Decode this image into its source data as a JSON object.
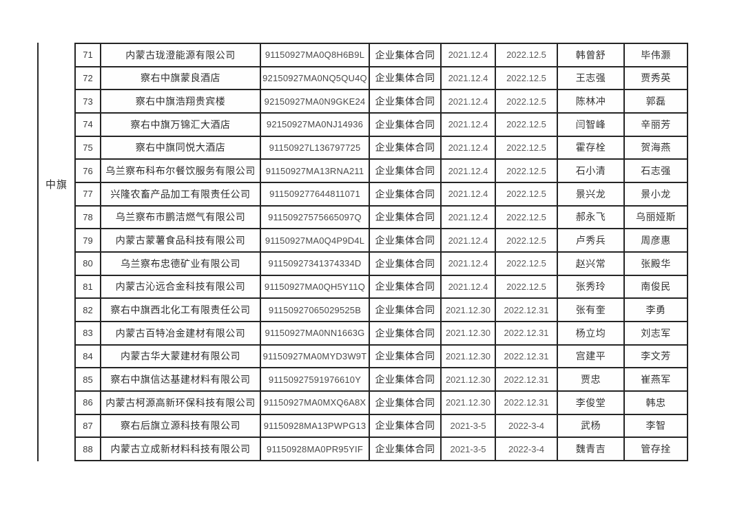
{
  "page": {
    "region_label": "中旗"
  },
  "table": {
    "border_color": "#242424",
    "rows": [
      {
        "no": "71",
        "company": "内蒙古珑澄能源有限公司",
        "code": "91150927MA0Q8H6B9L",
        "contract": "企业集体合同",
        "start": "2021.12.4",
        "end": "2022.12.5",
        "name1": "韩曾舒",
        "name2": "毕伟灏"
      },
      {
        "no": "72",
        "company": "察右中旗蒙良酒店",
        "code": "92150927MA0NQ5QU4Q",
        "contract": "企业集体合同",
        "start": "2021.12.4",
        "end": "2022.12.5",
        "name1": "王志强",
        "name2": "贾秀英"
      },
      {
        "no": "73",
        "company": "察右中旗浩翔贵宾楼",
        "code": "92150927MA0N9GKE24",
        "contract": "企业集体合同",
        "start": "2021.12.4",
        "end": "2022.12.5",
        "name1": "陈林冲",
        "name2": "郭磊"
      },
      {
        "no": "74",
        "company": "察右中旗万锦汇大酒店",
        "code": "92150927MA0NJ14936",
        "contract": "企业集体合同",
        "start": "2021.12.4",
        "end": "2022.12.5",
        "name1": "闫智峰",
        "name2": "辛丽芳"
      },
      {
        "no": "75",
        "company": "察右中旗同悦大酒店",
        "code": "91150927L136797725",
        "contract": "企业集体合同",
        "start": "2021.12.4",
        "end": "2022.12.5",
        "name1": "霍存栓",
        "name2": "贺海燕"
      },
      {
        "no": "76",
        "company": "乌兰察布科布尔餐饮服务有限公司",
        "code": "91150927MA13RNA211",
        "contract": "企业集体合同",
        "start": "2021.12.4",
        "end": "2022.12.5",
        "name1": "石小清",
        "name2": "石志强"
      },
      {
        "no": "77",
        "company": "兴隆农畜产品加工有限责任公司",
        "code": "911509277644811071",
        "contract": "企业集体合同",
        "start": "2021.12.4",
        "end": "2022.12.5",
        "name1": "景兴龙",
        "name2": "景小龙"
      },
      {
        "no": "78",
        "company": "乌兰察布市鹏洁燃气有限公司",
        "code": "91150927575665097Q",
        "contract": "企业集体合同",
        "start": "2021.12.4",
        "end": "2022.12.5",
        "name1": "郝永飞",
        "name2": "乌丽娅斯"
      },
      {
        "no": "79",
        "company": "内蒙古蒙薯食品科技有限公司",
        "code": "91150927MA0Q4P9D4L",
        "contract": "企业集体合同",
        "start": "2021.12.4",
        "end": "2022.12.5",
        "name1": "卢秀兵",
        "name2": "周彦惠"
      },
      {
        "no": "80",
        "company": "乌兰察布忠德矿业有限公司",
        "code": "91150927341374334D",
        "contract": "企业集体合同",
        "start": "2021.12.4",
        "end": "2022.12.5",
        "name1": "赵兴常",
        "name2": "张殿华"
      },
      {
        "no": "81",
        "company": "内蒙古沁远合金科技有限公司",
        "code": "91150927MA0QH5Y11Q",
        "contract": "企业集体合同",
        "start": "2021.12.4",
        "end": "2022.12.5",
        "name1": "张秀玲",
        "name2": "南俊民"
      },
      {
        "no": "82",
        "company": "察右中旗西北化工有限责任公司",
        "code": "91150927065029525B",
        "contract": "企业集体合同",
        "start": "2021.12.30",
        "end": "2022.12.31",
        "name1": "张有奎",
        "name2": "李勇"
      },
      {
        "no": "83",
        "company": "内蒙古百特冶金建材有限公司",
        "code": "91150927MA0NN1663G",
        "contract": "企业集体合同",
        "start": "2021.12.30",
        "end": "2022.12.31",
        "name1": "杨立均",
        "name2": "刘志军"
      },
      {
        "no": "84",
        "company": "内蒙古华大蒙建材有限公司",
        "code": "91150927MA0MYD3W9T",
        "contract": "企业集体合同",
        "start": "2021.12.30",
        "end": "2022.12.31",
        "name1": "宫建平",
        "name2": "李文芳"
      },
      {
        "no": "85",
        "company": "察右中旗信达基建材料有限公司",
        "code": "91150927591976610Y",
        "contract": "企业集体合同",
        "start": "2021.12.30",
        "end": "2022.12.31",
        "name1": "贾忠",
        "name2": "崔燕军"
      },
      {
        "no": "86",
        "company": "内蒙古柯源高新环保科技有限公司",
        "code": "91150927MA0MXQ6A8X",
        "contract": "企业集体合同",
        "start": "2021.12.30",
        "end": "2022.12.31",
        "name1": "李俊堂",
        "name2": "韩忠"
      },
      {
        "no": "87",
        "company": "察右后旗立源科技有限公司",
        "code": "91150928MA13PWPG13",
        "contract": "企业集体合同",
        "start": "2021-3-5",
        "end": "2022-3-4",
        "name1": "武杨",
        "name2": "李智"
      },
      {
        "no": "88",
        "company": "内蒙古立成新材料科技有限公司",
        "code": "91150928MA0PR95YIF",
        "contract": "企业集体合同",
        "start": "2021-3-5",
        "end": "2022-3-4",
        "name1": "魏青吉",
        "name2": "管存拴"
      }
    ]
  }
}
